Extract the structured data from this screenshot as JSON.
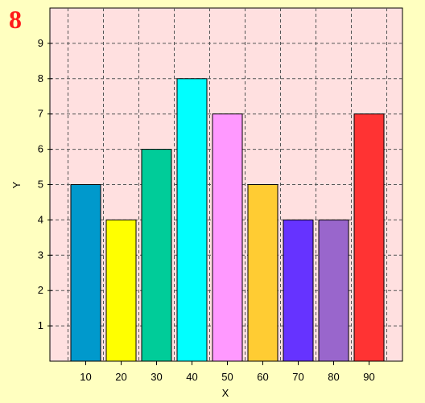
{
  "chart_data": {
    "type": "bar",
    "title": "8",
    "xlabel": "X",
    "ylabel": "Y",
    "categories": [
      "10",
      "20",
      "30",
      "40",
      "50",
      "60",
      "70",
      "80",
      "90"
    ],
    "values": [
      5,
      4,
      6,
      8,
      7,
      5,
      4,
      4,
      7
    ],
    "bar_colors": [
      "#0099cc",
      "#ffff00",
      "#00cc99",
      "#00ffff",
      "#ff99ff",
      "#ffcc33",
      "#6633ff",
      "#9966cc",
      "#ff3333"
    ],
    "y_ticks": [
      "1",
      "2",
      "3",
      "4",
      "5",
      "6",
      "7",
      "8",
      "9"
    ],
    "ylim": [
      0,
      10
    ],
    "grid": true,
    "colors": {
      "page_background": "#ffffc0",
      "plot_background": "#ffe0e0",
      "title": "#ff1a1a"
    }
  }
}
